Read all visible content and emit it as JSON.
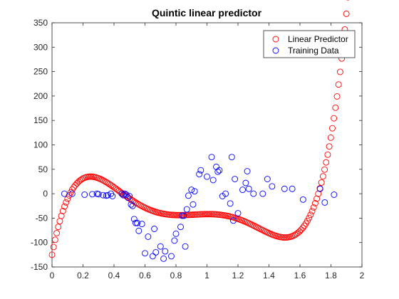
{
  "chart_data": {
    "type": "scatter",
    "title": "Quintic linear predictor",
    "xlabel": "",
    "ylabel": "",
    "xlim": [
      0,
      2
    ],
    "ylim": [
      -150,
      350
    ],
    "xticks": [
      "0",
      "0.2",
      "0.4",
      "0.6",
      "0.8",
      "1",
      "1.2",
      "1.4",
      "1.6",
      "1.8",
      "2"
    ],
    "yticks": [
      "-150",
      "-100",
      "-50",
      "0",
      "50",
      "100",
      "150",
      "200",
      "250",
      "300",
      "350"
    ],
    "grid": false,
    "legend_position": "top-right",
    "marker": "open-circle",
    "series": [
      {
        "name": "Linear Predictor",
        "color": "#ff0000",
        "polynomial_coefficients_high_to_low": [
          1050.5,
          -4707.8,
          7733.0,
          -5625.0,
          1632.5,
          -125.0
        ],
        "x_start": 0,
        "x_end": 2,
        "num_points": 200
      },
      {
        "name": "Training Data",
        "color": "#0000ff",
        "points": [
          [
            0.08,
            0
          ],
          [
            0.13,
            0
          ],
          [
            0.21,
            -2
          ],
          [
            0.26,
            -1
          ],
          [
            0.29,
            0
          ],
          [
            0.3,
            -1
          ],
          [
            0.33,
            -3
          ],
          [
            0.35,
            -4
          ],
          [
            0.36,
            -3
          ],
          [
            0.38,
            0
          ],
          [
            0.39,
            -5
          ],
          [
            0.45,
            0
          ],
          [
            0.46,
            -3
          ],
          [
            0.47,
            0
          ],
          [
            0.48,
            -2
          ],
          [
            0.49,
            -8
          ],
          [
            0.5,
            -5
          ],
          [
            0.51,
            -22
          ],
          [
            0.52,
            -25
          ],
          [
            0.53,
            -52
          ],
          [
            0.54,
            -60
          ],
          [
            0.55,
            -60
          ],
          [
            0.56,
            -76
          ],
          [
            0.58,
            -62
          ],
          [
            0.6,
            -122
          ],
          [
            0.62,
            -88
          ],
          [
            0.65,
            -128
          ],
          [
            0.66,
            -72
          ],
          [
            0.67,
            -120
          ],
          [
            0.7,
            -108
          ],
          [
            0.72,
            -133
          ],
          [
            0.73,
            -118
          ],
          [
            0.77,
            -128
          ],
          [
            0.79,
            -96
          ],
          [
            0.8,
            -82
          ],
          [
            0.83,
            -68
          ],
          [
            0.84,
            -45
          ],
          [
            0.85,
            -45
          ],
          [
            0.86,
            -108
          ],
          [
            0.87,
            -32
          ],
          [
            0.88,
            -4
          ],
          [
            0.9,
            8
          ],
          [
            0.91,
            -22
          ],
          [
            0.92,
            5
          ],
          [
            0.95,
            40
          ],
          [
            0.96,
            48
          ],
          [
            1.0,
            35
          ],
          [
            1.03,
            75
          ],
          [
            1.04,
            28
          ],
          [
            1.06,
            55
          ],
          [
            1.07,
            45
          ],
          [
            1.08,
            48
          ],
          [
            1.1,
            -5
          ],
          [
            1.12,
            0
          ],
          [
            1.15,
            -20
          ],
          [
            1.16,
            75
          ],
          [
            1.17,
            -55
          ],
          [
            1.18,
            30
          ],
          [
            1.2,
            -40
          ],
          [
            1.23,
            8
          ],
          [
            1.25,
            22
          ],
          [
            1.26,
            46
          ],
          [
            1.27,
            10
          ],
          [
            1.3,
            0
          ],
          [
            1.36,
            0
          ],
          [
            1.39,
            30
          ],
          [
            1.42,
            15
          ],
          [
            1.5,
            10
          ],
          [
            1.55,
            10
          ],
          [
            1.62,
            -12
          ],
          [
            1.73,
            10
          ],
          [
            1.76,
            -18
          ],
          [
            1.82,
            -2
          ]
        ]
      }
    ]
  }
}
